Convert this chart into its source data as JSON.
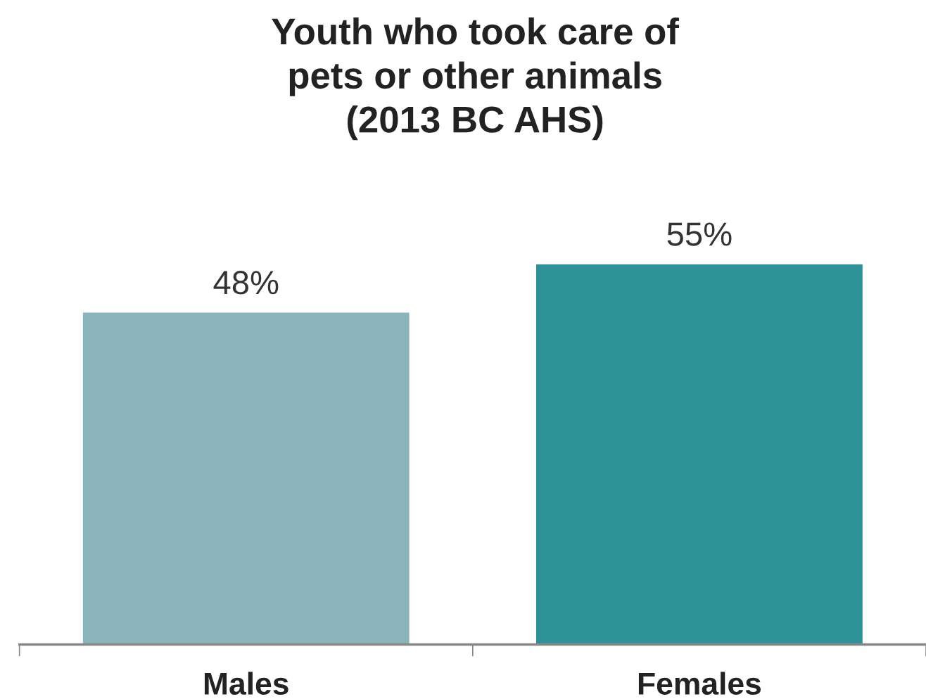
{
  "chart_data": {
    "type": "bar",
    "title": "Youth who took care of\npets or other animals\n(2013 BC AHS)",
    "categories": [
      "Males",
      "Females"
    ],
    "values": [
      48,
      55
    ],
    "colors": [
      "#8ab4ba",
      "#2e9197"
    ],
    "value_labels": [
      "48%",
      "55%"
    ],
    "ylim": [
      0,
      55
    ],
    "grid": false,
    "legend": false
  }
}
